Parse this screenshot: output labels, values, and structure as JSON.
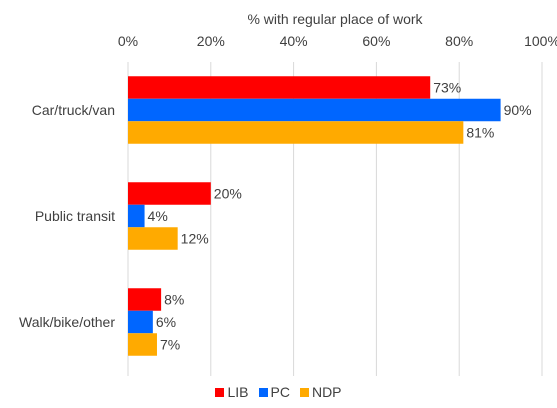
{
  "chart_data": {
    "type": "bar",
    "orientation": "horizontal",
    "xlabel": "% with regular place of work",
    "xlim": [
      0,
      100
    ],
    "xticks": [
      "0%",
      "20%",
      "40%",
      "60%",
      "80%",
      "100%"
    ],
    "categories": [
      "Car/truck/van",
      "Public transit",
      "Walk/bike/other"
    ],
    "series": [
      {
        "name": "LIB",
        "color": "#ff0000",
        "values": [
          73,
          20,
          8
        ],
        "labels": [
          "73%",
          "20%",
          "8%"
        ]
      },
      {
        "name": "PC",
        "color": "#0066ff",
        "values": [
          90,
          4,
          6
        ],
        "labels": [
          "90%",
          "4%",
          "6%"
        ]
      },
      {
        "name": "NDP",
        "color": "#ffaa00",
        "values": [
          81,
          12,
          7
        ],
        "labels": [
          "81%",
          "12%",
          "7%"
        ]
      }
    ],
    "grid": true,
    "legend_position": "bottom"
  }
}
